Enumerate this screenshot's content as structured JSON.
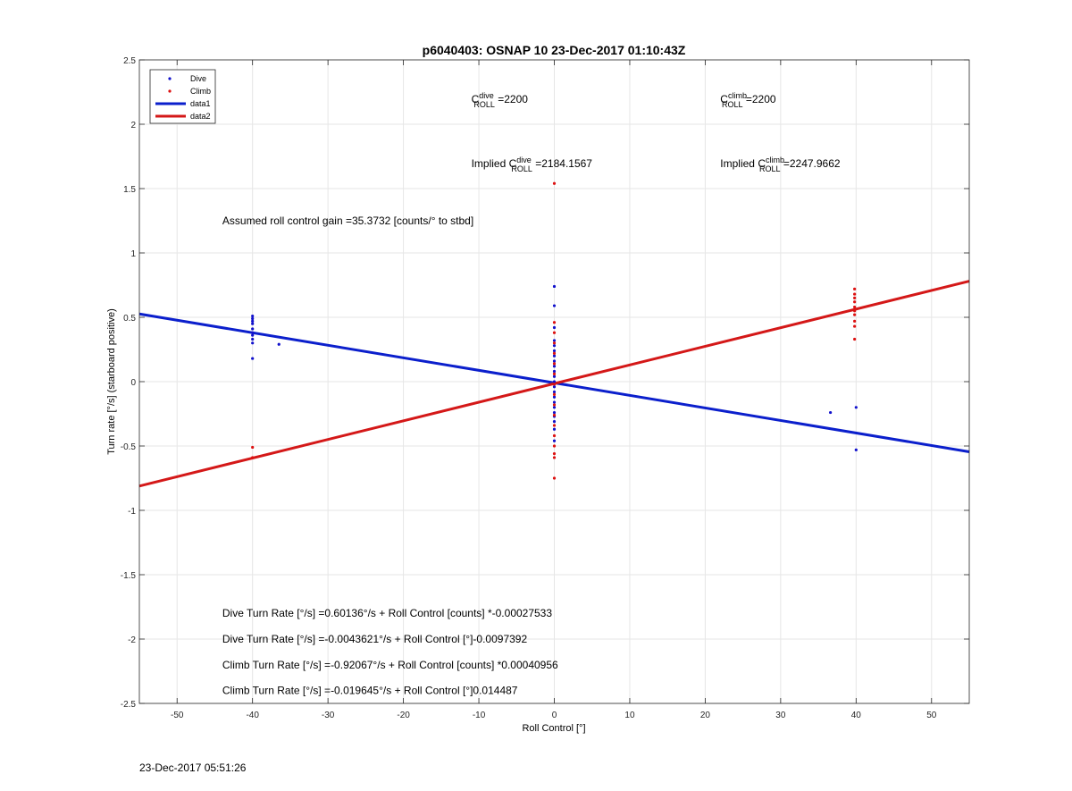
{
  "chart_data": {
    "type": "scatter",
    "title": "p6040403: OSNAP 10 23-Dec-2017 01:10:43Z",
    "xlabel": "Roll Control [°]",
    "ylabel": "Turn rate [°/s] (starboard positive)",
    "xlim": [
      -55,
      55
    ],
    "ylim": [
      -2.5,
      2.5
    ],
    "xticks": [
      -50,
      -40,
      -30,
      -20,
      -10,
      0,
      10,
      20,
      30,
      40,
      50
    ],
    "yticks": [
      -2.5,
      -2,
      -1.5,
      -1,
      -0.5,
      0,
      0.5,
      1,
      1.5,
      2,
      2.5
    ],
    "grid": true,
    "legend_position": "top-left",
    "legend": [
      {
        "label": "Dive",
        "kind": "marker",
        "color": "#1111cc"
      },
      {
        "label": "Climb",
        "kind": "marker",
        "color": "#dd1111"
      },
      {
        "label": "data1",
        "kind": "line",
        "color": "#0b1fcc"
      },
      {
        "label": "data2",
        "kind": "line",
        "color": "#d41818"
      }
    ],
    "series": [
      {
        "name": "Dive",
        "kind": "scatter",
        "color": "#1111cc",
        "points": [
          [
            -40,
            0.51
          ],
          [
            -40,
            0.49
          ],
          [
            -40,
            0.47
          ],
          [
            -40,
            0.45
          ],
          [
            -40,
            0.41
          ],
          [
            -40,
            0.38
          ],
          [
            -40,
            0.36
          ],
          [
            -40,
            0.33
          ],
          [
            -40,
            0.3
          ],
          [
            -40,
            0.18
          ],
          [
            -36.5,
            0.29
          ],
          [
            0,
            0.74
          ],
          [
            0,
            0.59
          ],
          [
            0,
            0.42
          ],
          [
            0,
            0.32
          ],
          [
            0,
            0.28
          ],
          [
            0,
            0.24
          ],
          [
            0,
            0.2
          ],
          [
            0,
            0.16
          ],
          [
            0,
            0.12
          ],
          [
            0,
            0.08
          ],
          [
            0,
            0.04
          ],
          [
            0,
            0.0
          ],
          [
            0,
            -0.04
          ],
          [
            0,
            -0.08
          ],
          [
            0,
            -0.12
          ],
          [
            0,
            -0.16
          ],
          [
            0,
            -0.2
          ],
          [
            0,
            -0.24
          ],
          [
            0,
            -0.27
          ],
          [
            0,
            -0.31
          ],
          [
            0,
            -0.37
          ],
          [
            0,
            -0.46
          ],
          [
            36.6,
            -0.24
          ],
          [
            40,
            -0.2
          ],
          [
            40,
            -0.53
          ]
        ]
      },
      {
        "name": "Climb",
        "kind": "scatter",
        "color": "#dd1111",
        "points": [
          [
            0,
            1.54
          ],
          [
            0,
            0.46
          ],
          [
            0,
            0.38
          ],
          [
            0,
            0.3
          ],
          [
            0,
            0.22
          ],
          [
            0,
            0.14
          ],
          [
            0,
            0.06
          ],
          [
            0,
            -0.02
          ],
          [
            0,
            -0.1
          ],
          [
            0,
            -0.18
          ],
          [
            0,
            -0.26
          ],
          [
            0,
            -0.34
          ],
          [
            0,
            -0.42
          ],
          [
            0,
            -0.5
          ],
          [
            0,
            -0.56
          ],
          [
            0,
            -0.59
          ],
          [
            0,
            -0.75
          ],
          [
            -40,
            -0.51
          ],
          [
            -40,
            -0.59
          ],
          [
            39.8,
            0.72
          ],
          [
            39.8,
            0.68
          ],
          [
            39.8,
            0.65
          ],
          [
            39.8,
            0.62
          ],
          [
            39.8,
            0.58
          ],
          [
            39.8,
            0.55
          ],
          [
            39.8,
            0.52
          ],
          [
            39.8,
            0.47
          ],
          [
            39.8,
            0.43
          ],
          [
            39.8,
            0.33
          ]
        ]
      },
      {
        "name": "data1",
        "kind": "line",
        "color": "#0b1fcc",
        "points": [
          [
            -55,
            0.526
          ],
          [
            55,
            -0.545
          ]
        ]
      },
      {
        "name": "data2",
        "kind": "line",
        "color": "#d41818",
        "points": [
          [
            -55,
            -0.811
          ],
          [
            55,
            0.781
          ]
        ]
      }
    ],
    "annotations": {
      "c_roll_dive": {
        "base": "C",
        "sup": "dive",
        "sub": "ROLL",
        "value": " =2200",
        "x": -11,
        "y": 2.2
      },
      "c_roll_climb": {
        "base": "C",
        "sup": "climb",
        "sub": "ROLL",
        "value": " =2200",
        "x": 22,
        "y": 2.2
      },
      "implied_dive": {
        "prefix": "Implied C",
        "sup": "dive",
        "sub": "ROLL",
        "value": " =2184.1567",
        "x": -11,
        "y": 1.7
      },
      "implied_climb": {
        "prefix": "Implied C",
        "sup": "climb",
        "sub": "ROLL",
        "value": " =2247.9662",
        "x": 22,
        "y": 1.7
      },
      "gain": {
        "text": "Assumed roll control gain =35.3732 [counts/° to stbd]",
        "x": -44,
        "y": 1.25
      },
      "equations": [
        {
          "text": "Dive Turn Rate [°/s] =0.60136°/s + Roll Control [counts] *-0.00027533",
          "x": -44,
          "y": -1.8
        },
        {
          "text": "Dive Turn Rate [°/s] =-0.0043621°/s + Roll Control [°]-0.0097392",
          "x": -44,
          "y": -2.0
        },
        {
          "text": "Climb Turn Rate [°/s] =-0.92067°/s + Roll Control [counts] *0.00040956",
          "x": -44,
          "y": -2.2
        },
        {
          "text": "Climb Turn Rate [°/s] =-0.019645°/s + Roll Control [°]0.014487",
          "x": -44,
          "y": -2.4
        }
      ]
    }
  },
  "footer": {
    "timestamp": "23-Dec-2017 05:51:26"
  }
}
